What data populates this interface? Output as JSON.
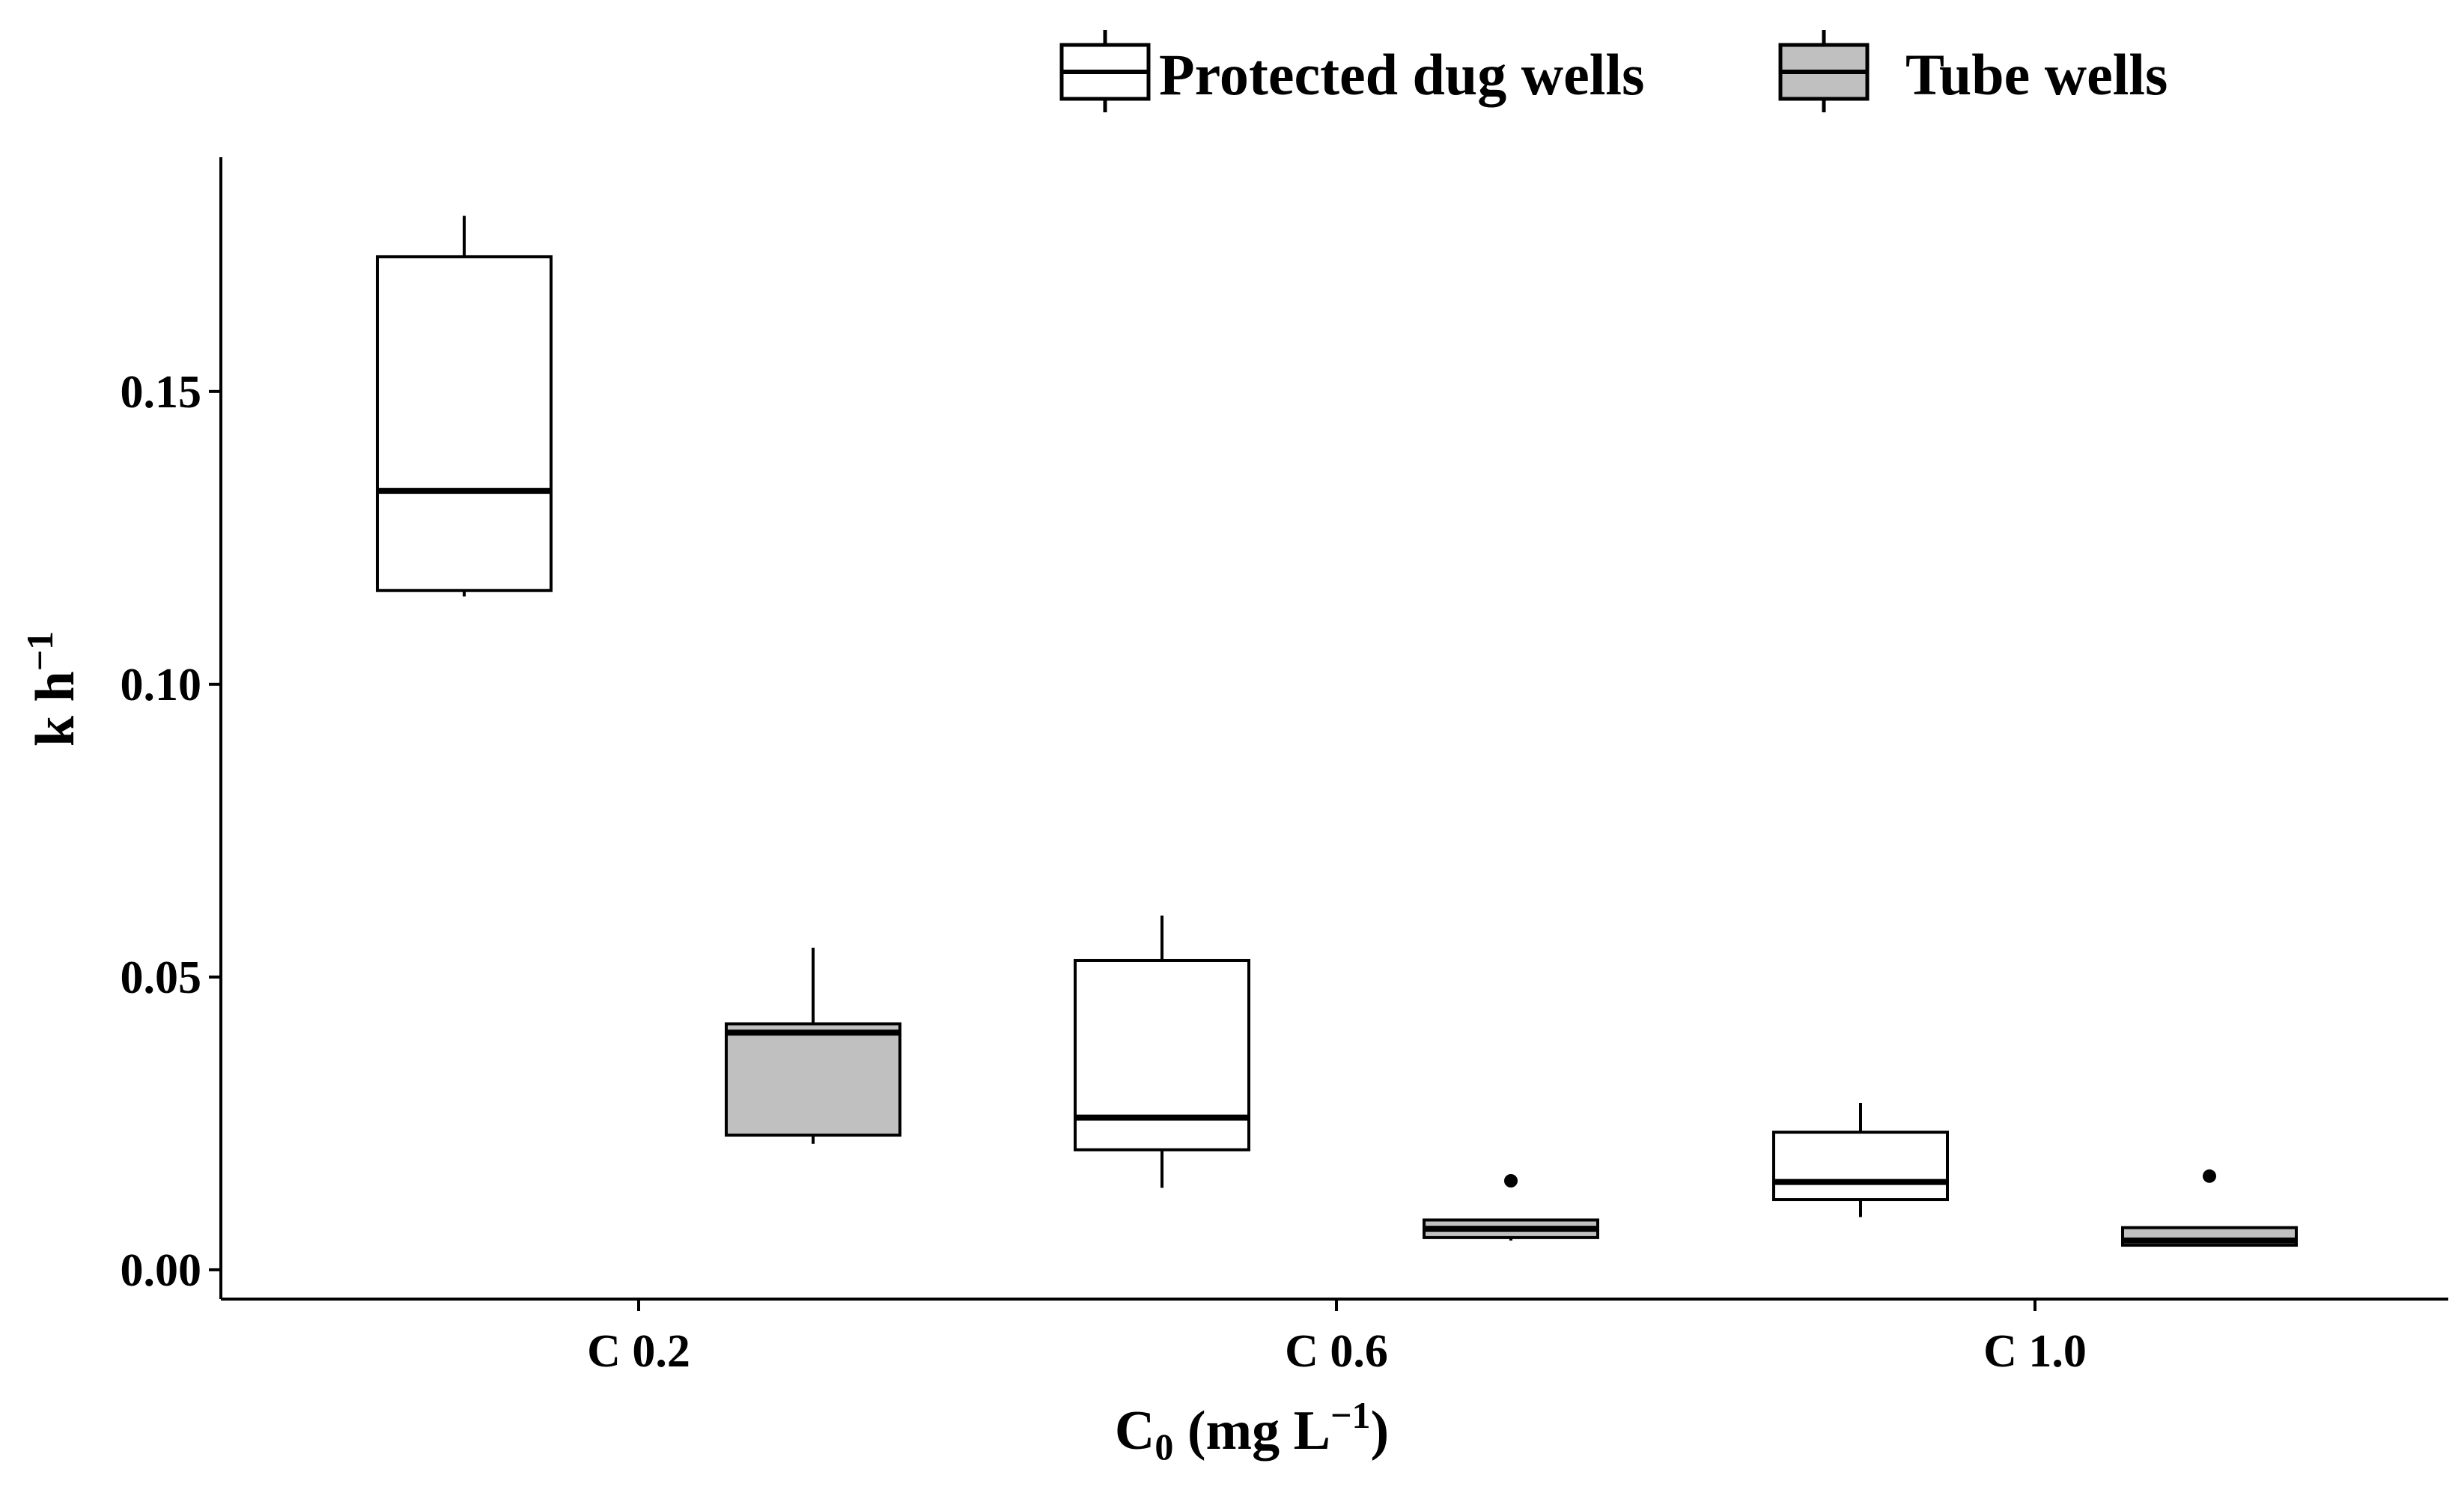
{
  "chart_data": {
    "type": "boxplot",
    "title": "",
    "xlabel": {
      "base": "C",
      "subscript": "0",
      "rest": " (mg L",
      "superscript": "−1",
      "close": ")"
    },
    "ylabel": {
      "base": "k h",
      "superscript": "−1"
    },
    "categories": [
      "C 0.2",
      "C 0.6",
      "C 1.0"
    ],
    "ylim": [
      -0.005,
      0.19
    ],
    "yticks": [
      0.0,
      0.05,
      0.1,
      0.15
    ],
    "ytick_labels": [
      "0.00",
      "0.05",
      "0.10",
      "0.15"
    ],
    "legend": {
      "placement": "top",
      "entries": [
        "Protected dug wells",
        "Tube wells"
      ]
    },
    "grid": false,
    "series": [
      {
        "name": "Protected dug wells",
        "fill": "#ffffff",
        "boxes": [
          {
            "category": "C 0.2",
            "whisker_low": 0.115,
            "q1": 0.116,
            "median": 0.133,
            "q3": 0.173,
            "whisker_high": 0.18,
            "outliers": []
          },
          {
            "category": "C 0.6",
            "whisker_low": 0.014,
            "q1": 0.0205,
            "median": 0.026,
            "q3": 0.0528,
            "whisker_high": 0.0605,
            "outliers": []
          },
          {
            "category": "C 1.0",
            "whisker_low": 0.009,
            "q1": 0.012,
            "median": 0.015,
            "q3": 0.0235,
            "whisker_high": 0.0285,
            "outliers": []
          }
        ]
      },
      {
        "name": "Tube wells",
        "fill": "#c0c0c0",
        "boxes": [
          {
            "category": "C 0.2",
            "whisker_low": 0.0215,
            "q1": 0.023,
            "median": 0.0405,
            "q3": 0.042,
            "whisker_high": 0.055,
            "outliers": []
          },
          {
            "category": "C 0.6",
            "whisker_low": 0.005,
            "q1": 0.0055,
            "median": 0.007,
            "q3": 0.0085,
            "whisker_high": 0.0085,
            "outliers": [
              0.0152
            ]
          },
          {
            "category": "C 1.0",
            "whisker_low": 0.004,
            "q1": 0.0042,
            "median": 0.005,
            "q3": 0.0072,
            "whisker_high": 0.0072,
            "outliers": [
              0.016
            ]
          }
        ]
      }
    ]
  }
}
